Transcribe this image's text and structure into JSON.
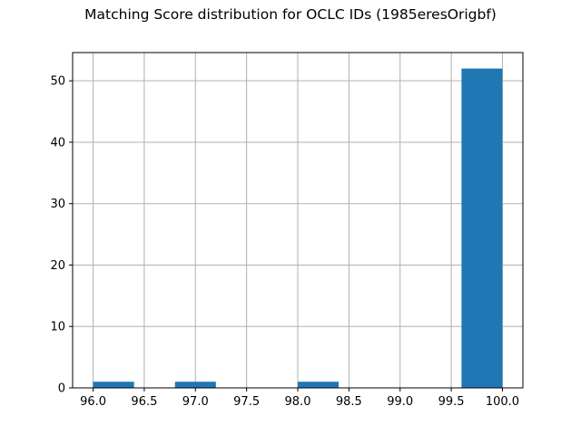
{
  "chart_data": {
    "type": "bar",
    "title": "Matching Score distribution for OCLC IDs (1985eresOrigbf)",
    "xlabel": "",
    "ylabel": "",
    "xlim": [
      95.8,
      100.2
    ],
    "ylim": [
      0,
      54.6
    ],
    "xticks": [
      96.0,
      96.5,
      97.0,
      97.5,
      98.0,
      98.5,
      99.0,
      99.5,
      100.0
    ],
    "xtick_labels": [
      "96.0",
      "96.5",
      "97.0",
      "97.5",
      "98.0",
      "98.5",
      "99.0",
      "99.5",
      "100.0"
    ],
    "yticks": [
      0,
      10,
      20,
      30,
      40,
      50
    ],
    "ytick_labels": [
      "0",
      "10",
      "20",
      "30",
      "40",
      "50"
    ],
    "grid": true,
    "bar_color": "#1f77b4",
    "bins": [
      {
        "x0": 96.0,
        "x1": 96.4,
        "count": 1
      },
      {
        "x0": 96.4,
        "x1": 96.8,
        "count": 0
      },
      {
        "x0": 96.8,
        "x1": 97.2,
        "count": 1
      },
      {
        "x0": 97.2,
        "x1": 97.6,
        "count": 0
      },
      {
        "x0": 97.6,
        "x1": 98.0,
        "count": 0
      },
      {
        "x0": 98.0,
        "x1": 98.4,
        "count": 1
      },
      {
        "x0": 98.4,
        "x1": 98.8,
        "count": 0
      },
      {
        "x0": 98.8,
        "x1": 99.2,
        "count": 0
      },
      {
        "x0": 99.2,
        "x1": 99.6,
        "count": 0
      },
      {
        "x0": 99.6,
        "x1": 100.0,
        "count": 52
      }
    ]
  }
}
